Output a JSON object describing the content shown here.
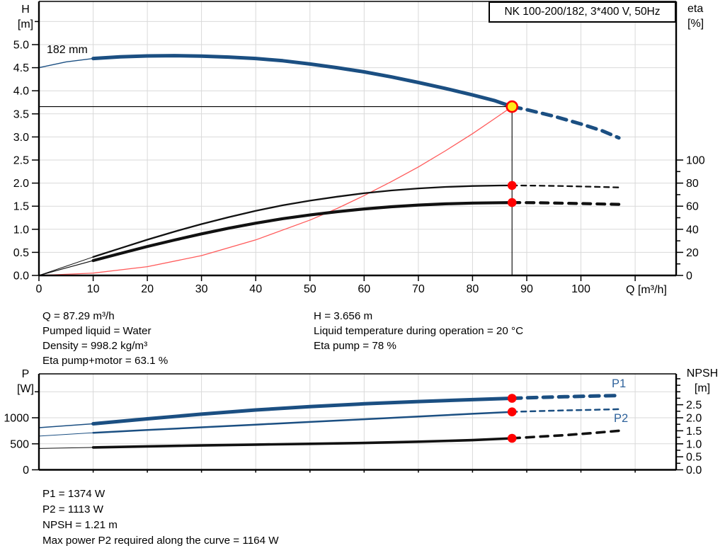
{
  "title_box": {
    "text": "NK 100-200/182, 3*400 V, 50Hz"
  },
  "labels": {
    "h_axis": [
      "H",
      "[m]"
    ],
    "eta_axis": [
      "eta",
      "[%]"
    ],
    "q_axis": "Q [m³/h]",
    "p_axis": [
      "P",
      "[W]"
    ],
    "npsh_axis": [
      "NPSH",
      "[m]"
    ],
    "impeller": "182 mm",
    "p1": "P1",
    "p2": "P2"
  },
  "info_top": {
    "left": [
      "Q = 87.29 m³/h",
      "Pumped liquid = Water",
      "Density = 998.2 kg/m³",
      "Eta pump+motor = 63.1 %"
    ],
    "right": [
      "H = 3.656 m",
      "Liquid temperature during operation = 20 °C",
      "Eta pump = 78 %"
    ]
  },
  "info_bottom": [
    "P1 = 1374 W",
    "P2 = 1113 W",
    "NPSH = 1.21 m",
    "Max power P2 required along the curve = 1164 W"
  ],
  "colors": {
    "grid": "#d9d9d9",
    "axis": "#000000",
    "blue": "#1b4f82",
    "black": "#111111",
    "sysred": "#ff5a5a",
    "duty_red": "#ff0000",
    "duty_yellow": "#ffe81a",
    "label_blue": "#2f639c"
  },
  "chart_data": [
    {
      "name": "head-efficiency-chart",
      "type": "line",
      "xlabel": "Q [m³/h]",
      "ylabel": "H [m]",
      "y2label": "eta [%]",
      "xlim": [
        0,
        117.5
      ],
      "ylim": [
        0,
        5.93
      ],
      "y2lim_shown": [
        0,
        100
      ],
      "grid": true,
      "duty_point": {
        "q": 87.29,
        "h": 3.656,
        "eta_pump": 78,
        "eta_pump_motor": 63.1
      },
      "ref": {
        "q": 87.29,
        "h": 3.656
      },
      "x_ticks": [
        {
          "v": 0,
          "l": "0"
        },
        {
          "v": 10,
          "l": "10"
        },
        {
          "v": 20,
          "l": "20"
        },
        {
          "v": 30,
          "l": "30"
        },
        {
          "v": 40,
          "l": "40"
        },
        {
          "v": 50,
          "l": "50"
        },
        {
          "v": 60,
          "l": "60"
        },
        {
          "v": 70,
          "l": "70"
        },
        {
          "v": 80,
          "l": "80"
        },
        {
          "v": 90,
          "l": "90"
        },
        {
          "v": 100,
          "l": "100"
        },
        {
          "v": 110
        }
      ],
      "y_ticks": [
        {
          "v": 0,
          "l": "0.0"
        },
        {
          "v": 0.5,
          "l": "0.5"
        },
        {
          "v": 1,
          "l": "1.0"
        },
        {
          "v": 1.5,
          "l": "1.5"
        },
        {
          "v": 2,
          "l": "2.0"
        },
        {
          "v": 2.5,
          "l": "2.5"
        },
        {
          "v": 3,
          "l": "3.0"
        },
        {
          "v": 3.5,
          "l": "3.5"
        },
        {
          "v": 4,
          "l": "4.0"
        },
        {
          "v": 4.5,
          "l": "4.5"
        },
        {
          "v": 5,
          "l": "5.0"
        },
        {
          "v": 5.5
        }
      ],
      "y2_ticks": [
        {
          "v": 0,
          "l": "0"
        },
        {
          "v": 10
        },
        {
          "v": 20,
          "l": "20"
        },
        {
          "v": 30
        },
        {
          "v": 40,
          "l": "40"
        },
        {
          "v": 50
        },
        {
          "v": 60,
          "l": "60"
        },
        {
          "v": 70
        },
        {
          "v": 80,
          "l": "80"
        },
        {
          "v": 90
        },
        {
          "v": 100,
          "l": "100"
        }
      ],
      "grid_v": [
        0.5,
        1,
        1.5,
        2,
        2.5,
        3,
        3.5,
        4,
        4.5,
        5,
        5.5
      ],
      "series": [
        {
          "id": "pump-curve-182mm",
          "name": "H 182 mm",
          "axis": "y",
          "color": "blue",
          "width": 5,
          "dash": "13 9",
          "lead": [
            [
              0,
              4.5
            ],
            [
              5,
              4.625
            ],
            [
              10,
              4.7
            ]
          ],
          "solid": [
            [
              10,
              4.7
            ],
            [
              15,
              4.735
            ],
            [
              20,
              4.755
            ],
            [
              25,
              4.76
            ],
            [
              30,
              4.75
            ],
            [
              35,
              4.73
            ],
            [
              40,
              4.7
            ],
            [
              45,
              4.65
            ],
            [
              50,
              4.58
            ],
            [
              55,
              4.5
            ],
            [
              60,
              4.41
            ],
            [
              65,
              4.3
            ],
            [
              70,
              4.18
            ],
            [
              75,
              4.05
            ],
            [
              80,
              3.91
            ],
            [
              84,
              3.79
            ],
            [
              87.29,
              3.656
            ]
          ],
          "dashed": [
            [
              87.29,
              3.656
            ],
            [
              90,
              3.59
            ],
            [
              95,
              3.45
            ],
            [
              100,
              3.28
            ],
            [
              104,
              3.13
            ],
            [
              107,
              2.98
            ]
          ]
        },
        {
          "id": "system-curve",
          "name": "System curve",
          "axis": "y",
          "color": "sysred",
          "width": 1.3,
          "solid": [
            [
              0,
              0
            ],
            [
              10,
              0.05
            ],
            [
              20,
              0.19
            ],
            [
              30,
              0.43
            ],
            [
              40,
              0.77
            ],
            [
              50,
              1.2
            ],
            [
              55,
              1.45
            ],
            [
              60,
              1.73
            ],
            [
              65,
              2.03
            ],
            [
              70,
              2.35
            ],
            [
              75,
              2.7
            ],
            [
              80,
              3.07
            ],
            [
              84,
              3.39
            ],
            [
              87.29,
              3.656
            ]
          ]
        },
        {
          "id": "eta-pump-curve",
          "name": "Eta pump",
          "axis": "y2",
          "color": "black",
          "width": 2.3,
          "dash": "7 6",
          "lead": [
            [
              0,
              0
            ],
            [
              5,
              8
            ],
            [
              10,
              16
            ]
          ],
          "solid": [
            [
              10,
              16
            ],
            [
              15,
              23.5
            ],
            [
              20,
              31
            ],
            [
              25,
              38
            ],
            [
              30,
              44.5
            ],
            [
              35,
              50.5
            ],
            [
              40,
              56
            ],
            [
              45,
              60.8
            ],
            [
              50,
              64.8
            ],
            [
              55,
              68.2
            ],
            [
              60,
              71.2
            ],
            [
              65,
              73.6
            ],
            [
              70,
              75.4
            ],
            [
              75,
              76.7
            ],
            [
              80,
              77.5
            ],
            [
              85,
              77.9
            ],
            [
              87.29,
              78
            ]
          ],
          "dashed": [
            [
              87.29,
              78
            ],
            [
              92,
              77.8
            ],
            [
              97,
              77.4
            ],
            [
              102,
              76.9
            ],
            [
              107.5,
              76.2
            ]
          ]
        },
        {
          "id": "eta-pump-motor-curve",
          "name": "Eta pump+motor",
          "axis": "y2",
          "color": "black",
          "width": 4.2,
          "dash": "11 9",
          "lead": [
            [
              0,
              0
            ],
            [
              5,
              6.5
            ],
            [
              10,
              12.9
            ]
          ],
          "solid": [
            [
              10,
              12.9
            ],
            [
              15,
              19
            ],
            [
              20,
              25.1
            ],
            [
              25,
              30.7
            ],
            [
              30,
              36
            ],
            [
              35,
              40.9
            ],
            [
              40,
              45.3
            ],
            [
              45,
              49.2
            ],
            [
              50,
              52.4
            ],
            [
              55,
              55.2
            ],
            [
              60,
              57.6
            ],
            [
              65,
              59.5
            ],
            [
              70,
              61
            ],
            [
              75,
              62
            ],
            [
              80,
              62.7
            ],
            [
              85,
              63
            ],
            [
              87.29,
              63.1
            ]
          ],
          "dashed": [
            [
              87.29,
              63.1
            ],
            [
              92,
              63
            ],
            [
              97,
              62.6
            ],
            [
              102,
              62.1
            ],
            [
              107,
              61.6
            ]
          ]
        }
      ],
      "markers": [
        {
          "id": "duty-point-marker",
          "type": "duty",
          "axis": "y",
          "q": 87.29,
          "v": 3.656
        },
        {
          "id": "eta-pump-duty-dot",
          "type": "dot",
          "axis": "y2",
          "q": 87.29,
          "v": 78
        },
        {
          "id": "eta-pump-motor-duty-dot",
          "type": "dot",
          "axis": "y2",
          "q": 87.29,
          "v": 63.1
        }
      ]
    },
    {
      "name": "power-npsh-chart",
      "type": "line",
      "xlabel": "Q [m³/h]",
      "ylabel": "P [W]",
      "y2label": "NPSH [m]",
      "xlim": [
        0,
        117.5
      ],
      "ylim": [
        0,
        1840
      ],
      "y2lim": [
        0,
        3.68
      ],
      "grid": true,
      "duty_point": {
        "q": 87.29,
        "p1": 1374,
        "p2": 1113,
        "npsh": 1.21
      },
      "x_ticks": [
        {
          "v": 10
        },
        {
          "v": 20
        },
        {
          "v": 30
        },
        {
          "v": 40
        },
        {
          "v": 50
        },
        {
          "v": 60
        },
        {
          "v": 70
        },
        {
          "v": 80
        },
        {
          "v": 90
        },
        {
          "v": 100
        },
        {
          "v": 110
        }
      ],
      "y_ticks": [
        {
          "v": 0,
          "l": "0"
        },
        {
          "v": 500,
          "l": "500"
        },
        {
          "v": 1000,
          "l": "1000"
        },
        {
          "v": 1500
        }
      ],
      "y2_ticks": [
        {
          "v": 0,
          "l": "0.0"
        },
        {
          "v": 0.25
        },
        {
          "v": 0.5,
          "l": "0.5"
        },
        {
          "v": 0.75
        },
        {
          "v": 1,
          "l": "1.0"
        },
        {
          "v": 1.25
        },
        {
          "v": 1.5,
          "l": "1.5"
        },
        {
          "v": 1.75
        },
        {
          "v": 2,
          "l": "2.0"
        },
        {
          "v": 2.25
        },
        {
          "v": 2.5,
          "l": "2.5"
        },
        {
          "v": 2.75
        },
        {
          "v": 3
        },
        {
          "v": 3.25
        },
        {
          "v": 3.5
        }
      ],
      "grid_v": [
        500,
        1000,
        1500
      ],
      "series": [
        {
          "id": "p1-curve",
          "name": "P1",
          "axis": "y",
          "color": "blue",
          "width": 5,
          "dash": "13 9",
          "lead": [
            [
              0,
              810
            ],
            [
              10,
              885
            ]
          ],
          "solid": [
            [
              10,
              885
            ],
            [
              20,
              980
            ],
            [
              30,
              1070
            ],
            [
              40,
              1150
            ],
            [
              50,
              1215
            ],
            [
              60,
              1268
            ],
            [
              70,
              1312
            ],
            [
              80,
              1348
            ],
            [
              87.29,
              1374
            ]
          ],
          "dashed": [
            [
              87.29,
              1374
            ],
            [
              92,
              1390
            ],
            [
              97,
              1404
            ],
            [
              102,
              1416
            ],
            [
              107,
              1427
            ]
          ]
        },
        {
          "id": "p2-curve",
          "name": "P2",
          "axis": "y",
          "color": "blue",
          "width": 2.5,
          "dash": "7 6",
          "lead": [
            [
              0,
              648
            ],
            [
              10,
              712
            ]
          ],
          "solid": [
            [
              10,
              712
            ],
            [
              20,
              764
            ],
            [
              30,
              816
            ],
            [
              40,
              868
            ],
            [
              50,
              920
            ],
            [
              60,
              972
            ],
            [
              70,
              1024
            ],
            [
              80,
              1076
            ],
            [
              87.29,
              1113
            ]
          ],
          "dashed": [
            [
              87.29,
              1113
            ],
            [
              92,
              1128
            ],
            [
              97,
              1141
            ],
            [
              102,
              1153
            ],
            [
              107,
              1164
            ]
          ]
        },
        {
          "id": "npsh-curve",
          "name": "NPSH",
          "axis": "y2",
          "color": "black",
          "width": 3.6,
          "dash": "11 9",
          "lead": [
            [
              0,
              0.82
            ],
            [
              10,
              0.86
            ]
          ],
          "solid": [
            [
              10,
              0.86
            ],
            [
              20,
              0.9
            ],
            [
              30,
              0.935
            ],
            [
              40,
              0.97
            ],
            [
              50,
              1.0
            ],
            [
              60,
              1.03
            ],
            [
              70,
              1.08
            ],
            [
              80,
              1.14
            ],
            [
              87.29,
              1.21
            ]
          ],
          "dashed": [
            [
              87.29,
              1.21
            ],
            [
              92,
              1.27
            ],
            [
              97,
              1.33
            ],
            [
              102,
              1.41
            ],
            [
              107,
              1.5
            ]
          ]
        }
      ],
      "markers": [
        {
          "id": "p1-duty-dot",
          "type": "dot",
          "axis": "y",
          "q": 87.29,
          "v": 1374
        },
        {
          "id": "p2-duty-dot",
          "type": "dot",
          "axis": "y",
          "q": 87.29,
          "v": 1113
        },
        {
          "id": "npsh-duty-dot",
          "type": "dot",
          "axis": "y2",
          "q": 87.29,
          "v": 1.21
        }
      ]
    }
  ]
}
